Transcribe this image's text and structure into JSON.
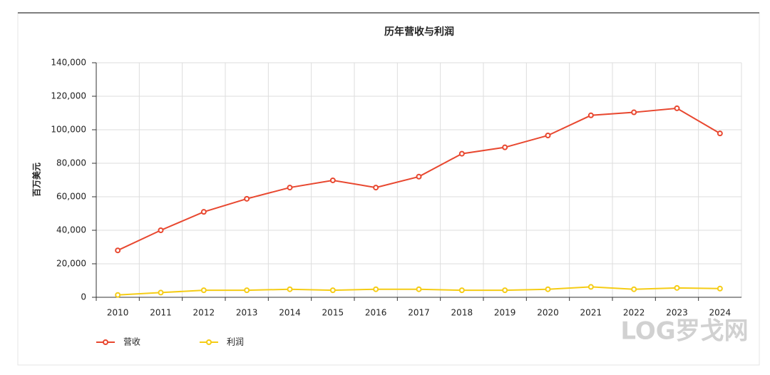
{
  "chart_data": {
    "type": "line",
    "title": "历年营收与利润",
    "y_label": "百万美元",
    "categories": [
      "2010",
      "2011",
      "2012",
      "2013",
      "2014",
      "2015",
      "2016",
      "2017",
      "2018",
      "2019",
      "2020",
      "2021",
      "2022",
      "2023",
      "2024"
    ],
    "series": [
      {
        "name": "营收",
        "color": "#e8472f",
        "values": [
          28000,
          40000,
          51000,
          58800,
          65500,
          69800,
          65500,
          72000,
          85700,
          89500,
          96600,
          108600,
          110400,
          112800,
          97800
        ]
      },
      {
        "name": "利润",
        "color": "#f5cc15",
        "values": [
          1400,
          2800,
          4200,
          4200,
          4800,
          4200,
          4800,
          4800,
          4200,
          4200,
          4800,
          6200,
          4800,
          5600,
          5200
        ]
      }
    ],
    "ylim": [
      0,
      140000
    ],
    "yticks": [
      0,
      {
        "value": 20000,
        "label": "20,000"
      },
      {
        "value": 40000,
        "label": "40,000"
      },
      {
        "value": 60000,
        "label": "60,000"
      },
      {
        "value": 80000,
        "label": "80,000"
      },
      {
        "value": 100000,
        "label": "100,000"
      },
      {
        "value": 120000,
        "label": "120,000"
      },
      {
        "value": 140000,
        "label": "140,000"
      }
    ],
    "grid": true,
    "legend": "bottom-left",
    "watermark": "LOG罗戈网"
  }
}
